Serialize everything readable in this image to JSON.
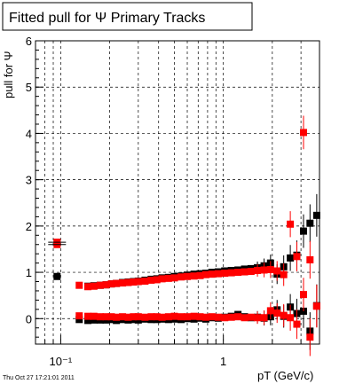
{
  "chart_data": {
    "type": "scatter",
    "title": "Fitted pull for  Ψ   Primary Tracks",
    "xlabel": "pT (GeV/c)",
    "ylabel": "pull for  Ψ",
    "x_scale": "log",
    "xlim": [
      0.07,
      3.9
    ],
    "ylim": [
      -0.55,
      6.0
    ],
    "x_major_ticks": [
      0.1,
      1
    ],
    "x_tick_labels": [
      "10⁻¹",
      "1"
    ],
    "y_ticks": [
      0,
      1,
      2,
      3,
      4,
      5,
      6
    ],
    "y_tick_labels": [
      "0",
      "1",
      "2",
      "3",
      "4",
      "5",
      "6"
    ],
    "grid": true,
    "series": [
      {
        "marker_color": "#000000",
        "x": [
          0.095,
          0.147,
          0.16,
          0.175,
          0.19,
          0.205,
          0.22,
          0.24,
          0.26,
          0.28,
          0.3,
          0.33,
          0.36,
          0.39,
          0.42,
          0.46,
          0.5,
          0.55,
          0.6,
          0.66,
          0.72,
          0.78,
          0.85,
          0.93,
          1.02,
          1.12,
          1.23,
          1.35,
          1.48,
          1.62,
          1.78,
          1.95,
          2.14,
          2.35,
          2.58,
          2.83,
          3.11,
          3.41,
          3.75
        ],
        "y": [
          0.91,
          0.7,
          0.71,
          0.72,
          0.73,
          0.75,
          0.76,
          0.78,
          0.79,
          0.8,
          0.81,
          0.83,
          0.85,
          0.86,
          0.88,
          0.89,
          0.91,
          0.92,
          0.94,
          0.96,
          0.97,
          0.98,
          1.0,
          1.01,
          1.03,
          1.04,
          1.05,
          1.07,
          1.08,
          1.1,
          1.14,
          1.2,
          0.96,
          1.12,
          1.31,
          1.37,
          1.89,
          2.06,
          2.23
        ]
      },
      {
        "marker_color": "#ff0000",
        "x": [
          0.095,
          0.13,
          0.147,
          0.16,
          0.175,
          0.19,
          0.205,
          0.22,
          0.24,
          0.26,
          0.28,
          0.3,
          0.33,
          0.36,
          0.39,
          0.42,
          0.46,
          0.5,
          0.55,
          0.6,
          0.66,
          0.72,
          0.78,
          0.85,
          0.93,
          1.02,
          1.12,
          1.23,
          1.35,
          1.48,
          1.62,
          1.78,
          1.95,
          2.14,
          2.35,
          2.58,
          2.83,
          3.11,
          3.41,
          3.75
        ],
        "y": [
          1.65,
          0.72,
          0.69,
          0.7,
          0.72,
          0.73,
          0.75,
          0.76,
          0.77,
          0.78,
          0.79,
          0.8,
          0.81,
          0.83,
          0.84,
          0.86,
          0.87,
          0.88,
          0.9,
          0.91,
          0.92,
          0.93,
          0.95,
          0.96,
          0.97,
          0.98,
          0.99,
          1.0,
          1.01,
          1.02,
          1.04,
          1.05,
          1.06,
          1.03,
          0.95,
          2.04,
          1.34,
          4.02,
          1.27,
          0.27
        ]
      },
      {
        "marker_color": "#000000",
        "x": [
          0.13,
          0.147,
          0.16,
          0.175,
          0.19,
          0.205,
          0.22,
          0.24,
          0.26,
          0.28,
          0.3,
          0.33,
          0.36,
          0.39,
          0.42,
          0.46,
          0.5,
          0.55,
          0.6,
          0.66,
          0.72,
          0.78,
          0.85,
          0.93,
          1.02,
          1.12,
          1.23,
          1.35,
          1.48,
          1.62,
          1.78,
          1.95,
          2.14,
          2.35,
          2.58,
          2.83,
          3.11,
          3.41,
          3.75
        ],
        "y": [
          -0.02,
          -0.04,
          -0.03,
          -0.03,
          -0.03,
          -0.02,
          -0.04,
          -0.02,
          -0.03,
          -0.02,
          -0.03,
          -0.01,
          -0.02,
          -0.02,
          -0.01,
          -0.02,
          -0.01,
          -0.02,
          0.0,
          -0.01,
          0.01,
          -0.01,
          0.02,
          0.01,
          0.03,
          0.05,
          0.09,
          0.04,
          0.02,
          0.03,
          0.01,
          0.04,
          0.19,
          0.05,
          0.25,
          0.11,
          0.16,
          -0.27,
          0.28
        ]
      },
      {
        "marker_color": "#ff0000",
        "x": [
          0.095,
          0.13,
          0.147,
          0.16,
          0.175,
          0.19,
          0.205,
          0.22,
          0.24,
          0.26,
          0.28,
          0.3,
          0.33,
          0.36,
          0.39,
          0.42,
          0.46,
          0.5,
          0.55,
          0.6,
          0.66,
          0.72,
          0.78,
          0.85,
          0.93,
          1.02,
          1.12,
          1.23,
          1.35,
          1.48,
          1.62,
          1.78,
          1.95,
          2.14,
          2.35,
          2.58,
          2.83,
          3.11,
          3.41,
          3.75
        ],
        "y": [
          1.6,
          0.06,
          0.05,
          0.05,
          0.04,
          0.04,
          0.04,
          0.03,
          0.04,
          0.03,
          0.04,
          0.04,
          0.03,
          0.04,
          0.04,
          0.03,
          0.04,
          0.05,
          0.04,
          0.04,
          0.05,
          0.04,
          0.03,
          0.04,
          0.03,
          0.02,
          0.03,
          0.04,
          0.02,
          0.03,
          0.02,
          0.02,
          0.17,
          0.12,
          0.07,
          0.02,
          -0.12,
          0.52,
          -0.4,
          0.27
        ]
      }
    ],
    "footer_timestamp": "Thu Oct 27 17:21:01 2011"
  }
}
